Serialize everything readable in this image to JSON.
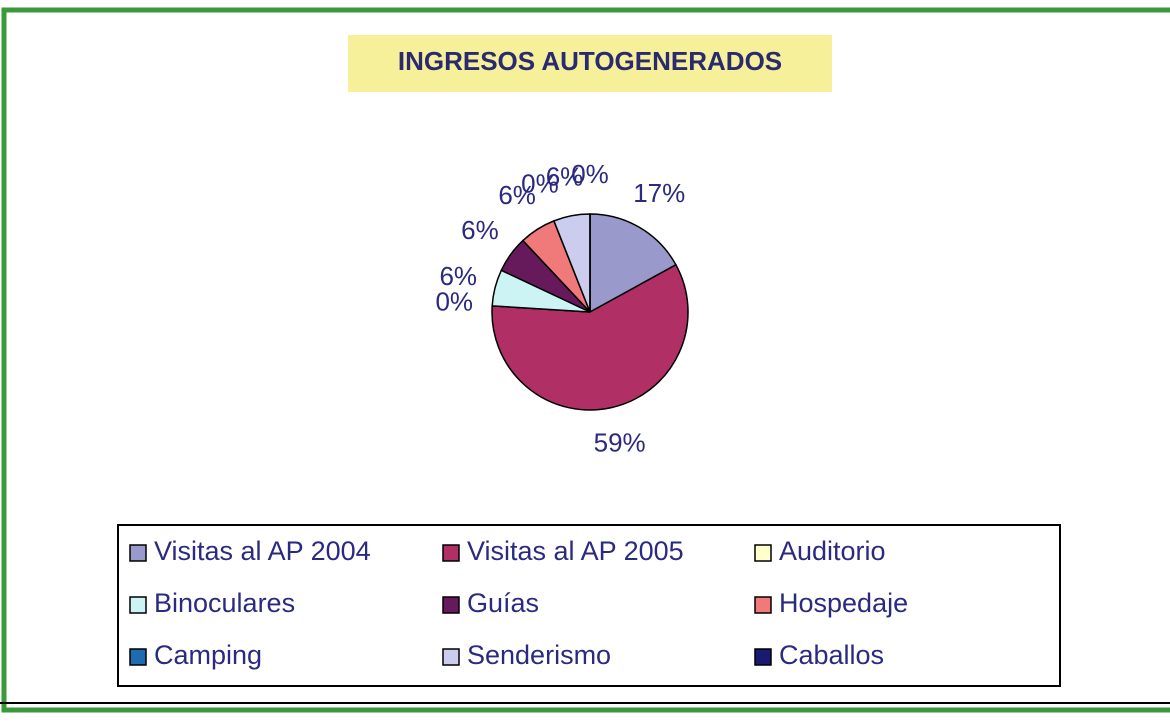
{
  "chart_data": {
    "type": "pie",
    "title": "INGRESOS AUTOGENERADOS",
    "categories": [
      "Visitas al AP 2004",
      "Visitas al AP 2005",
      "Auditorio",
      "Binoculares",
      "Guías",
      "Hospedaje",
      "Camping",
      "Senderismo",
      "Caballos"
    ],
    "values": [
      17,
      59,
      0,
      6,
      6,
      6,
      0,
      6,
      0
    ],
    "value_labels": [
      "17%",
      "59%",
      "0%",
      "6%",
      "6%",
      "6%",
      "0%",
      "6%",
      "0%"
    ],
    "colors": [
      "#9999cc",
      "#b03066",
      "#ffffcc",
      "#ccf4f4",
      "#661a5c",
      "#f07a7a",
      "#1f6bb0",
      "#ccccee",
      "#1a1a70"
    ]
  }
}
